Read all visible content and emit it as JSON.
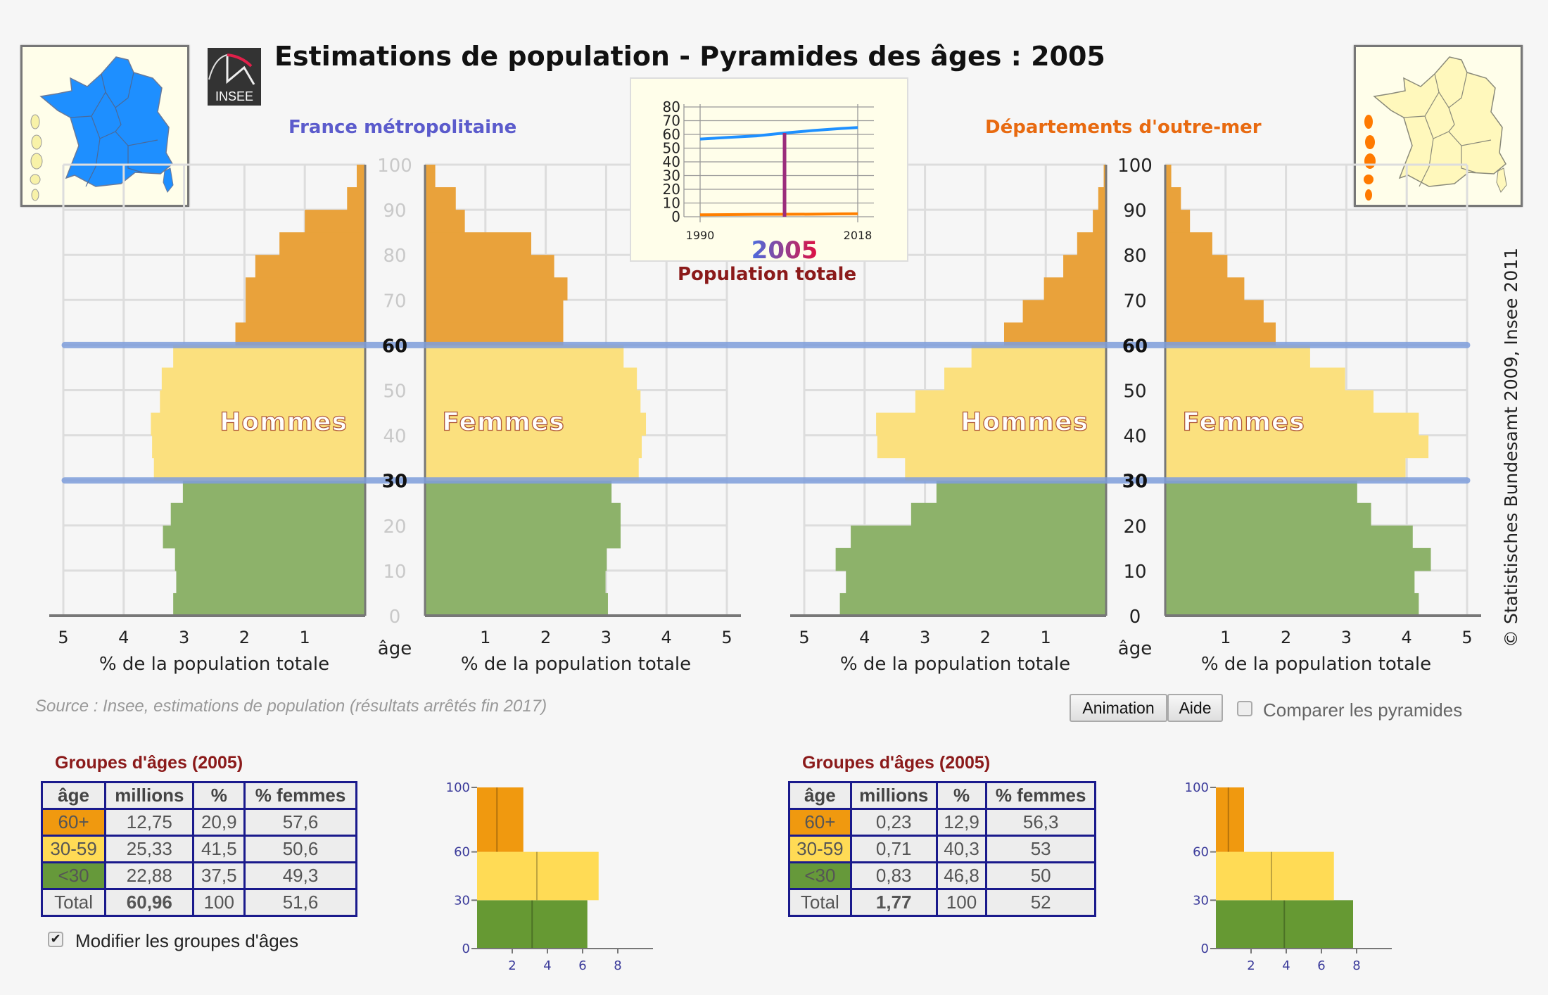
{
  "header": {
    "title": "Estimations de population - Pyramides des âges : 2005",
    "logo_text": "INSEE",
    "left_region": "France métropolitaine",
    "right_region": "Départements d'outre-mer",
    "left_map": "map-france-metropolitaine-selected",
    "right_map": "map-dom-selected"
  },
  "colors": {
    "seniors": "#e9a23b",
    "adults": "#fbe07e",
    "youth": "#8db26a",
    "boundary_line": "#7f9edc",
    "metro": "#5b5bcc",
    "dom": "#e86a10",
    "table_border": "#1a1a8c",
    "title_red": "#8b1a1a"
  },
  "pyramid_labels": {
    "men": "Hommes",
    "women": "Femmes",
    "xlabel": "% de la population totale",
    "age_label": "âge",
    "copyright": "© Statistisches Bundesamt 2009, Insee 2011"
  },
  "source": "Source : Insee, estimations de population (résultats arrêtés fin 2017)",
  "controls": {
    "animation_button": "Animation",
    "help_button": "Aide",
    "compare_label": "Comparer les pyramides",
    "compare_checked": false,
    "modify_label": "Modifier les groupes d'âges",
    "modify_checked": true
  },
  "chart_data": [
    {
      "type": "bar",
      "title": "France métropolitaine",
      "orientation": "population-pyramid",
      "xlabel": "% de la population totale",
      "ylabel": "âge",
      "xlim": [
        0,
        5
      ],
      "ylim": [
        0,
        100
      ],
      "x_ticks": [
        1,
        2,
        3,
        4,
        5
      ],
      "age_ticks": [
        0,
        10,
        20,
        30,
        40,
        50,
        60,
        70,
        80,
        90,
        100
      ],
      "group_boundaries": [
        30,
        60
      ],
      "categories": [
        "0-4",
        "5-9",
        "10-14",
        "15-19",
        "20-24",
        "25-29",
        "30-34",
        "35-39",
        "40-44",
        "45-49",
        "50-54",
        "55-59",
        "60-64",
        "65-69",
        "70-74",
        "75-79",
        "80-84",
        "85-89",
        "90-94",
        "95-99"
      ],
      "series": [
        {
          "name": "Hommes",
          "values": [
            3.18,
            3.13,
            3.15,
            3.35,
            3.22,
            3.02,
            3.5,
            3.53,
            3.55,
            3.4,
            3.37,
            3.18,
            2.15,
            1.98,
            1.98,
            1.82,
            1.42,
            1.0,
            0.3,
            0.14
          ]
        },
        {
          "name": "Femmes",
          "values": [
            3.03,
            2.99,
            3.01,
            3.24,
            3.24,
            3.09,
            3.54,
            3.59,
            3.66,
            3.57,
            3.51,
            3.29,
            2.29,
            2.29,
            2.36,
            2.14,
            1.76,
            0.66,
            0.51,
            0.17
          ]
        }
      ]
    },
    {
      "type": "bar",
      "title": "Départements d'outre-mer",
      "orientation": "population-pyramid",
      "xlabel": "% de la population totale",
      "ylabel": "âge",
      "xlim": [
        0,
        5
      ],
      "ylim": [
        0,
        100
      ],
      "x_ticks": [
        1,
        2,
        3,
        4,
        5
      ],
      "age_ticks": [
        0,
        10,
        20,
        30,
        40,
        50,
        60,
        70,
        80,
        90,
        100
      ],
      "group_boundaries": [
        30,
        60
      ],
      "categories": [
        "0-4",
        "5-9",
        "10-14",
        "15-19",
        "20-24",
        "25-29",
        "30-34",
        "35-39",
        "40-44",
        "45-49",
        "50-54",
        "55-59",
        "60-64",
        "65-69",
        "70-74",
        "75-79",
        "80-84",
        "85-89",
        "90-94",
        "95-99"
      ],
      "series": [
        {
          "name": "Hommes",
          "values": [
            4.41,
            4.31,
            4.48,
            4.23,
            3.23,
            2.81,
            3.33,
            3.79,
            3.81,
            3.16,
            2.68,
            2.23,
            1.69,
            1.38,
            1.03,
            0.71,
            0.48,
            0.22,
            0.13,
            0.04
          ]
        },
        {
          "name": "Femmes",
          "values": [
            4.2,
            4.13,
            4.4,
            4.1,
            3.41,
            3.18,
            3.98,
            4.36,
            4.2,
            3.45,
            2.98,
            2.4,
            1.83,
            1.63,
            1.31,
            1.03,
            0.78,
            0.41,
            0.26,
            0.1
          ]
        }
      ]
    },
    {
      "type": "line",
      "title": "Population totale",
      "highlight_year": "2005",
      "x": [
        1990,
        1995,
        2000,
        2005,
        2010,
        2015,
        2018
      ],
      "x_tick_labels": [
        "1990",
        "2018"
      ],
      "y_ticks": [
        0,
        10,
        20,
        30,
        40,
        50,
        60,
        70,
        80
      ],
      "ylim": [
        0,
        80
      ],
      "series": [
        {
          "name": "France métropolitaine",
          "color": "#1e90ff",
          "values": [
            56.6,
            57.8,
            58.9,
            61.0,
            62.8,
            64.3,
            65.0
          ]
        },
        {
          "name": "Départements d'outre-mer",
          "color": "#ff7f00",
          "values": [
            1.4,
            1.55,
            1.7,
            1.77,
            1.85,
            2.1,
            2.2
          ]
        }
      ],
      "marker": {
        "year": 2005,
        "value": 61.0,
        "color": "#9b2c7c"
      }
    },
    {
      "type": "bar",
      "title": "Groupes d'âges France métropolitaine",
      "orientation": "horizontal-stacked-by-age",
      "categories": [
        "<30",
        "30-59",
        "60+"
      ],
      "age_ranges": [
        [
          0,
          30
        ],
        [
          30,
          60
        ],
        [
          60,
          100
        ]
      ],
      "ylim": [
        0,
        100
      ],
      "y_ticks": [
        0,
        30,
        60,
        100
      ],
      "x_ticks": [
        2,
        4,
        6,
        8
      ],
      "xlim": [
        0,
        10
      ],
      "series": [
        {
          "name": "total",
          "values": [
            6.27,
            6.91,
            2.63
          ]
        },
        {
          "name": "hommes",
          "values": [
            3.13,
            3.4,
            1.13
          ]
        }
      ]
    },
    {
      "type": "bar",
      "title": "Groupes d'âges Départements d'outre-mer",
      "orientation": "horizontal-stacked-by-age",
      "categories": [
        "<30",
        "30-59",
        "60+"
      ],
      "age_ranges": [
        [
          0,
          30
        ],
        [
          30,
          60
        ],
        [
          60,
          100
        ]
      ],
      "ylim": [
        0,
        100
      ],
      "y_ticks": [
        0,
        30,
        60,
        100
      ],
      "x_ticks": [
        2,
        4,
        6,
        8
      ],
      "xlim": [
        0,
        10
      ],
      "series": [
        {
          "name": "total",
          "values": [
            7.8,
            6.71,
            1.6
          ]
        },
        {
          "name": "hommes",
          "values": [
            3.89,
            3.16,
            0.71
          ]
        }
      ]
    }
  ],
  "tables": [
    {
      "title": "Groupes d'âges (2005)",
      "headers": [
        "âge",
        "millions",
        "%",
        "% femmes"
      ],
      "rows": [
        [
          "60+",
          "12,75",
          "20,9",
          "57,6"
        ],
        [
          "30-59",
          "25,33",
          "41,5",
          "50,6"
        ],
        [
          "<30",
          "22,88",
          "37,5",
          "49,3"
        ],
        [
          "Total",
          "60,96",
          "100",
          "51,6"
        ]
      ]
    },
    {
      "title": "Groupes d'âges (2005)",
      "headers": [
        "âge",
        "millions",
        "%",
        "% femmes"
      ],
      "rows": [
        [
          "60+",
          "0,23",
          "12,9",
          "56,3"
        ],
        [
          "30-59",
          "0,71",
          "40,3",
          "53"
        ],
        [
          "<30",
          "0,83",
          "46,8",
          "50"
        ],
        [
          "Total",
          "1,77",
          "100",
          "52"
        ]
      ]
    }
  ]
}
